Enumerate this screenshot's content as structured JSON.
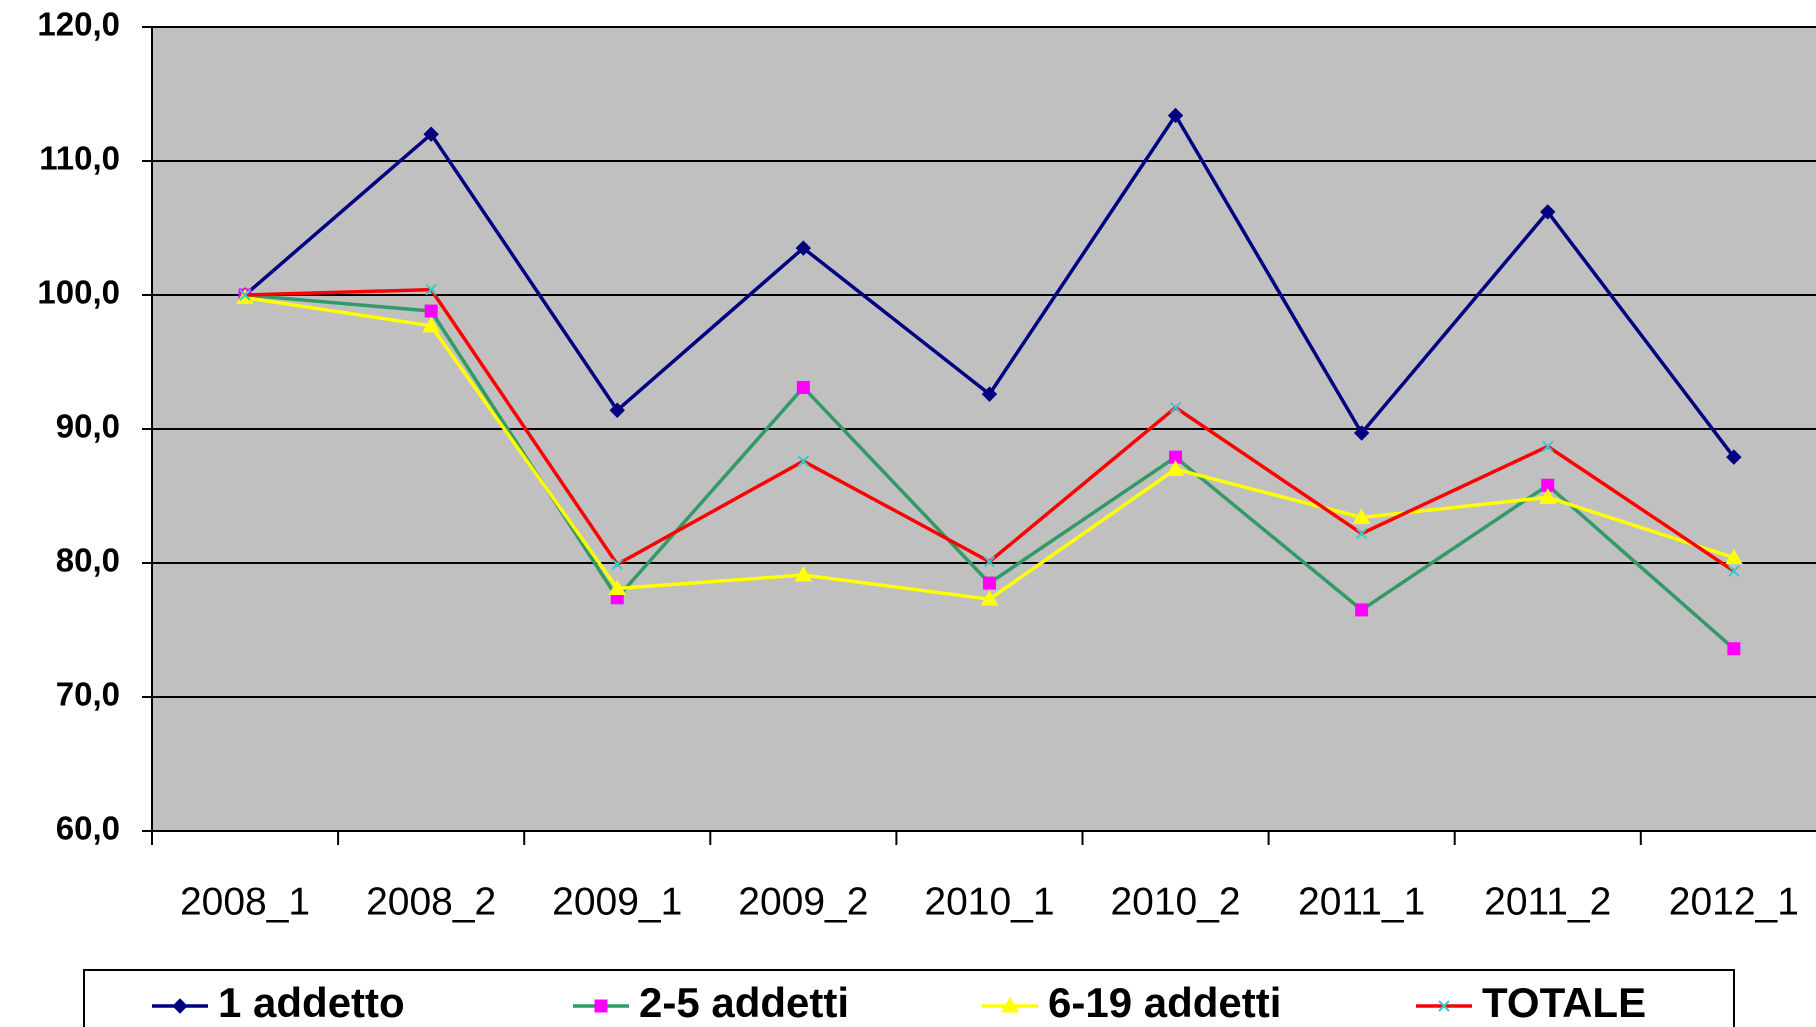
{
  "chart_data": {
    "type": "line",
    "categories": [
      "2008_1",
      "2008_2",
      "2009_1",
      "2009_2",
      "2010_1",
      "2010_2",
      "2011_1",
      "2011_2",
      "2012_1"
    ],
    "series": [
      {
        "name": "1 addetto",
        "color": "#000080",
        "marker": "diamond",
        "marker_color": "#000080",
        "values": [
          100,
          112.0,
          91.4,
          103.5,
          92.6,
          113.4,
          89.7,
          106.2,
          87.9
        ]
      },
      {
        "name": "2-5 addetti",
        "color": "#339966",
        "marker": "square",
        "marker_color": "#ff00ff",
        "values": [
          100,
          98.8,
          77.4,
          93.1,
          78.5,
          87.9,
          76.5,
          85.8,
          73.6
        ]
      },
      {
        "name": "6-19 addetti",
        "color": "#ffff00",
        "marker": "triangle",
        "marker_color": "#ffff00",
        "values": [
          99.8,
          97.7,
          78.1,
          79.1,
          77.3,
          87.0,
          83.4,
          84.9,
          80.4
        ]
      },
      {
        "name": "TOTALE",
        "color": "#ff0000",
        "marker": "x",
        "marker_color": "#33cccc",
        "values": [
          100,
          100.4,
          79.9,
          87.6,
          80.1,
          91.6,
          82.2,
          88.7,
          79.4
        ]
      }
    ],
    "ylim": [
      60,
      120
    ],
    "yticks": [
      {
        "value": 60,
        "label": "60,0"
      },
      {
        "value": 70,
        "label": "70,0"
      },
      {
        "value": 80,
        "label": "80,0"
      },
      {
        "value": 90,
        "label": "90,0"
      },
      {
        "value": 100,
        "label": "100,0"
      },
      {
        "value": 110,
        "label": "110,0"
      },
      {
        "value": 120,
        "label": "120,0"
      }
    ],
    "grid": true,
    "legend": "bottom",
    "background": "#c0c0c0"
  }
}
